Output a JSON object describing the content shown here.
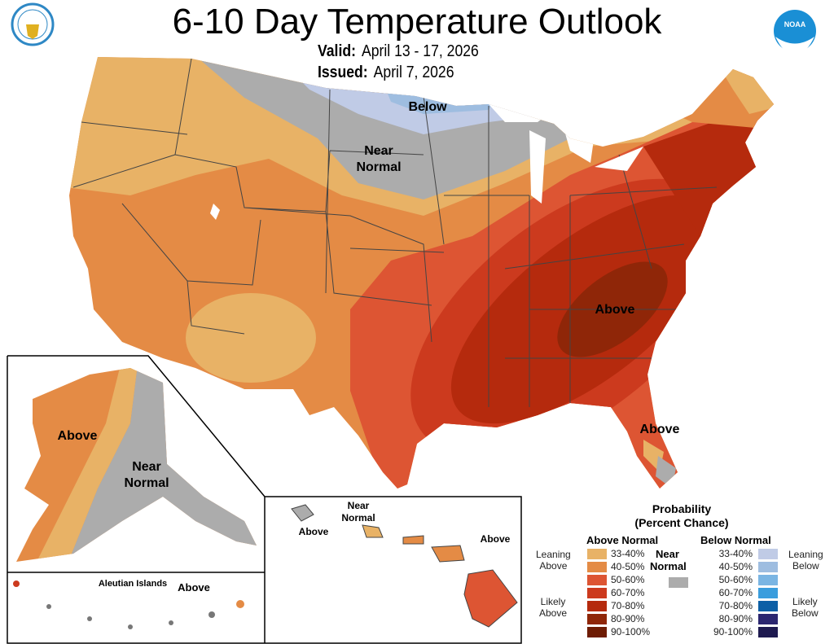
{
  "title": "6-10 Day Temperature Outlook",
  "valid_label": "Valid:",
  "valid_value": "April 13 - 17, 2026",
  "issued_label": "Issued:",
  "issued_value": "April 7, 2026",
  "logos": {
    "left": "US Department of Commerce seal",
    "right": "NOAA"
  },
  "map_labels": {
    "below": "Below",
    "near": "Near",
    "normal": "Normal",
    "above_se": "Above",
    "above_fl": "Above",
    "ak_above": "Above",
    "ak_near": "Near",
    "ak_normal": "Normal",
    "aleutian": "Aleutian Islands",
    "aleutian_above": "Above",
    "hi_near": "Near",
    "hi_normal": "Normal",
    "hi_above_left": "Above",
    "hi_above_right": "Above"
  },
  "legend": {
    "title1": "Probability",
    "title2": "(Percent Chance)",
    "above_header": "Above Normal",
    "below_header": "Below Normal",
    "near1": "Near",
    "near2": "Normal",
    "leaning_above": [
      "Leaning",
      "Above"
    ],
    "likely_above": [
      "Likely",
      "Above"
    ],
    "leaning_below": [
      "Leaning",
      "Below"
    ],
    "likely_below": [
      "Likely",
      "Below"
    ],
    "ranges": [
      "33-40%",
      "40-50%",
      "50-60%",
      "60-70%",
      "70-80%",
      "80-90%",
      "90-100%"
    ],
    "above_colors": [
      "#e8b266",
      "#e48b45",
      "#dd5533",
      "#cc3a1e",
      "#b52a0d",
      "#8f2608",
      "#6e1c04"
    ],
    "below_colors": [
      "#c0cbe6",
      "#9ebde0",
      "#7ab5e3",
      "#3a9ddd",
      "#0c5fa6",
      "#2b2670",
      "#1e1a50"
    ],
    "near_color": "#acacac"
  }
}
